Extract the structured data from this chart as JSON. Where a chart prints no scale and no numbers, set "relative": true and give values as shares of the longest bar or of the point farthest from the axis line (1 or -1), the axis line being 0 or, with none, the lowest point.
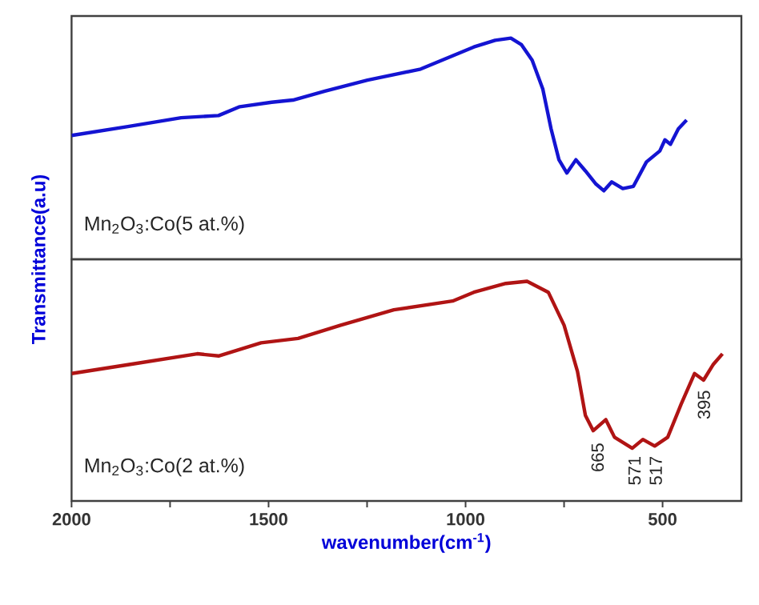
{
  "chart_data": [
    {
      "type": "line",
      "relative": true,
      "ylabel": "Transmittance(a.u)",
      "xlim": [
        2000,
        300
      ],
      "tick_labels": false,
      "x": [
        2000,
        1857,
        1722,
        1627,
        1573,
        1492,
        1438,
        1357,
        1249,
        1114,
        1087,
        1033,
        979,
        925,
        885,
        858,
        831,
        804,
        783,
        763,
        743,
        720,
        696,
        669,
        649,
        629,
        601,
        574,
        541,
        507,
        494,
        480,
        460,
        439
      ],
      "series": [
        {
          "name": "Mn$_{2}$O$_{3}$:Co(5 at.%)",
          "color": "#1414d2",
          "values": [
            0.56,
            0.6,
            0.64,
            0.65,
            0.69,
            0.71,
            0.72,
            0.76,
            0.81,
            0.86,
            0.88,
            0.92,
            0.96,
            0.99,
            1.0,
            0.97,
            0.9,
            0.77,
            0.59,
            0.45,
            0.39,
            0.45,
            0.4,
            0.34,
            0.31,
            0.35,
            0.32,
            0.33,
            0.44,
            0.49,
            0.54,
            0.52,
            0.59,
            0.63
          ]
        }
      ]
    },
    {
      "type": "line",
      "relative": true,
      "xlabel": "wavenumber(cm$^{-1}$)",
      "xlim": [
        2000,
        300
      ],
      "tick_labels": "x",
      "xticks": [
        2000,
        {
          "value": 1750,
          "label": null
        },
        1500,
        {
          "value": 1250,
          "label": null
        },
        1000,
        {
          "value": 750,
          "label": null
        },
        500
      ],
      "x": [
        2000,
        1857,
        1681,
        1627,
        1519,
        1425,
        1317,
        1182,
        1033,
        979,
        898,
        844,
        790,
        750,
        716,
        696,
        676,
        644,
        622,
        577,
        550,
        520,
        487,
        453,
        419,
        396,
        372,
        348
      ],
      "series": [
        {
          "name": "Mn$_{2}$O$_{3}$:Co(2 at.%)",
          "color": "#b01414",
          "values": [
            0.58,
            0.62,
            0.67,
            0.66,
            0.72,
            0.74,
            0.8,
            0.87,
            0.91,
            0.95,
            0.99,
            1.0,
            0.95,
            0.8,
            0.59,
            0.39,
            0.32,
            0.37,
            0.29,
            0.24,
            0.28,
            0.25,
            0.29,
            0.44,
            0.58,
            0.55,
            0.62,
            0.67
          ]
        }
      ],
      "annotations": [
        {
          "text": "665",
          "x": 665,
          "y": 0.29
        },
        {
          "text": "571",
          "x": 571,
          "y": 0.23
        },
        {
          "text": "517",
          "x": 517,
          "y": 0.23
        },
        {
          "text": "395",
          "x": 395,
          "y": 0.53
        }
      ]
    }
  ]
}
